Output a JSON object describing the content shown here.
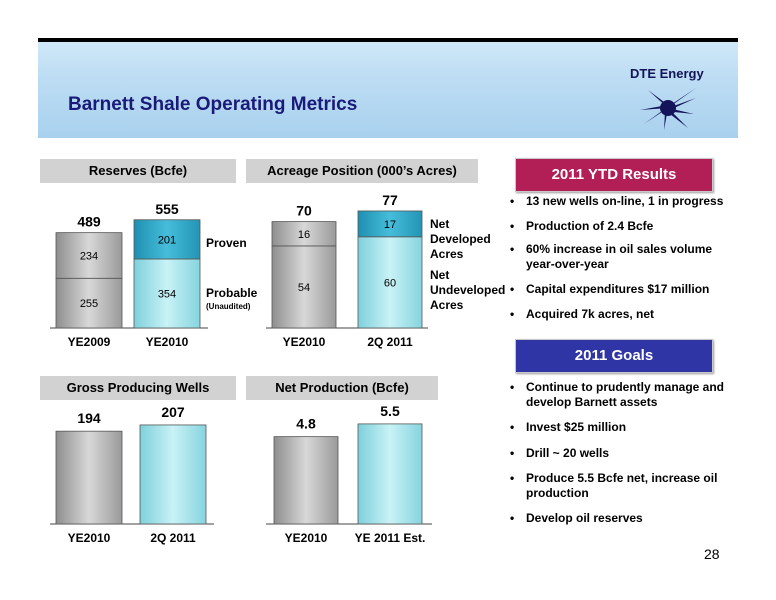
{
  "title": "Barnett Shale Operating Metrics",
  "logo": {
    "text": "DTE Energy",
    "mark": "dte-energy-logo-icon"
  },
  "page_number": "28",
  "results": {
    "header": "2011 YTD Results",
    "items": [
      "13 new wells on-line, 1 in progress",
      "Production of 2.4 Bcfe",
      "60% increase in oil sales volume year-over-year",
      "Capital expenditures $17 million",
      "Acquired 7k acres, net"
    ]
  },
  "goals": {
    "header": "2011 Goals",
    "items": [
      "Continue to prudently manage and develop Barnett assets",
      "Invest $25 million",
      "Drill ~ 20 wells",
      "Produce 5.5 Bcfe net, increase oil production",
      "Develop oil reserves"
    ]
  },
  "colors": {
    "results": "#b21e56",
    "goals": "#2f35a5",
    "bar_gray": "#b8b8b8",
    "bar_teal": "#a6e4ec",
    "bar_teal_dark": "#2aa5c6"
  },
  "chart_data": [
    {
      "id": "reserves",
      "type": "bar",
      "stacked": true,
      "title": "Reserves (Bcfe)",
      "categories": [
        "YE2009",
        "YE2010"
      ],
      "series": [
        {
          "name": "Probable",
          "values": [
            255,
            354
          ]
        },
        {
          "name": "Proven",
          "values": [
            234,
            201
          ]
        }
      ],
      "totals": [
        489,
        555
      ],
      "legend": [
        "Proven",
        "Probable"
      ],
      "legend_note": "(Unaudited)"
    },
    {
      "id": "acreage",
      "type": "bar",
      "stacked": true,
      "title": "Acreage Position (000’s Acres)",
      "categories": [
        "YE2010",
        "2Q 2011"
      ],
      "series": [
        {
          "name": "Net Undeveloped Acres",
          "values": [
            54,
            60
          ]
        },
        {
          "name": "Net Developed Acres",
          "values": [
            16,
            17
          ]
        }
      ],
      "totals": [
        70,
        77
      ],
      "legend": [
        "Net Developed Acres",
        "Net Undeveloped Acres"
      ]
    },
    {
      "id": "wells",
      "type": "bar",
      "title": "Gross Producing Wells",
      "categories": [
        "YE2010",
        "2Q 2011"
      ],
      "values": [
        194,
        207
      ]
    },
    {
      "id": "production",
      "type": "bar",
      "title": "Net Production (Bcfe)",
      "categories": [
        "YE2010",
        "YE 2011 Est."
      ],
      "values": [
        4.8,
        5.5
      ]
    }
  ]
}
